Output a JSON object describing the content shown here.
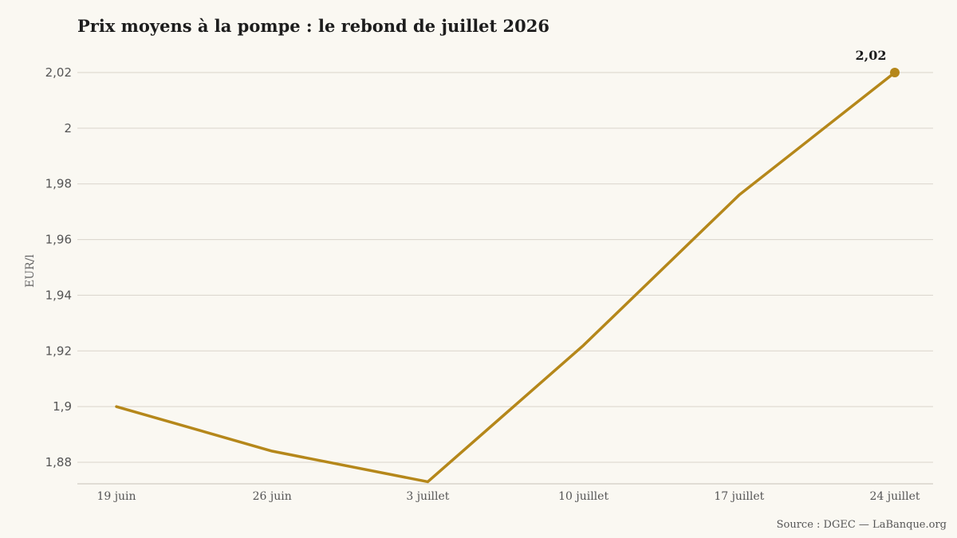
{
  "chart_data": {
    "type": "line",
    "title": "Prix moyens à la pompe : le rebond de juillet 2026",
    "ylabel": "EUR/l",
    "xlabel": "",
    "categories": [
      "19 juin",
      "26 juin",
      "3 juillet",
      "10 juillet",
      "17 juillet",
      "24 juillet"
    ],
    "series": [
      {
        "values": [
          1.9,
          1.884,
          1.873,
          1.922,
          1.976,
          2.02
        ],
        "color": "#b5871a"
      }
    ],
    "yticks": [
      1.88,
      1.9,
      1.92,
      1.94,
      1.96,
      1.98,
      2.0,
      2.02
    ],
    "ytick_labels": [
      "1,88",
      "1,9",
      "1,92",
      "1,94",
      "1,96",
      "1,98",
      "2",
      "2,02"
    ],
    "ylim": [
      1.866,
      2.02
    ],
    "grid": true,
    "end_label": "2,02"
  },
  "source": "Source : DGEC — LaBanque.org"
}
